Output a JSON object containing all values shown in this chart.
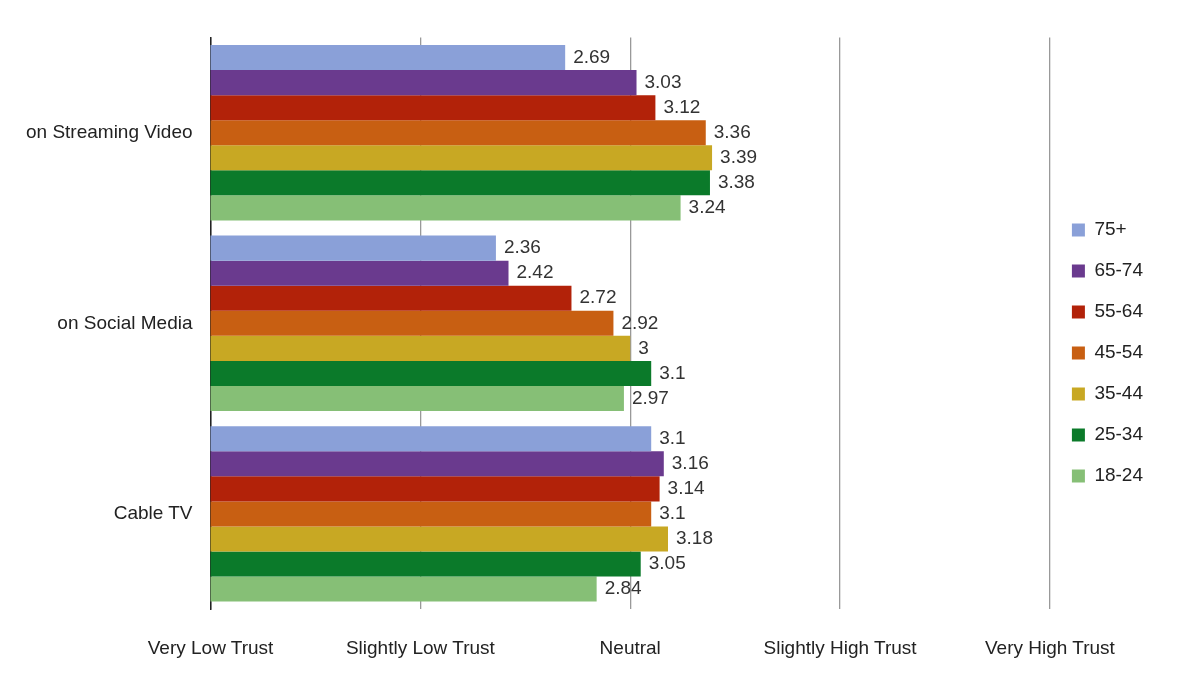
{
  "chart_data": {
    "type": "bar",
    "orientation": "horizontal",
    "categories": [
      "on Streaming Video",
      "on Social Media",
      "Cable TV"
    ],
    "series": [
      {
        "name": "75+",
        "color": "#8aa0d8",
        "values": [
          2.69,
          2.36,
          3.1
        ]
      },
      {
        "name": "65-74",
        "color": "#6a3a8e",
        "values": [
          3.03,
          2.42,
          3.16
        ]
      },
      {
        "name": "55-64",
        "color": "#b22209",
        "values": [
          3.12,
          2.72,
          3.14
        ]
      },
      {
        "name": "45-54",
        "color": "#c85f12",
        "values": [
          3.36,
          2.92,
          3.1
        ]
      },
      {
        "name": "35-44",
        "color": "#c8a823",
        "values": [
          3.39,
          3,
          3.18
        ]
      },
      {
        "name": "25-34",
        "color": "#0b7a2a",
        "values": [
          3.38,
          3.1,
          3.05
        ]
      },
      {
        "name": "18-24",
        "color": "#86bf76",
        "values": [
          3.24,
          2.97,
          2.84
        ]
      }
    ],
    "xlim": [
      1,
      5
    ],
    "annotations": [
      "Very Low Trust",
      "Slightly Low Trust",
      "Neutral",
      "Slightly High Trust",
      "Very High Trust"
    ],
    "grid": "x",
    "legend": "right",
    "data_labels": true
  }
}
